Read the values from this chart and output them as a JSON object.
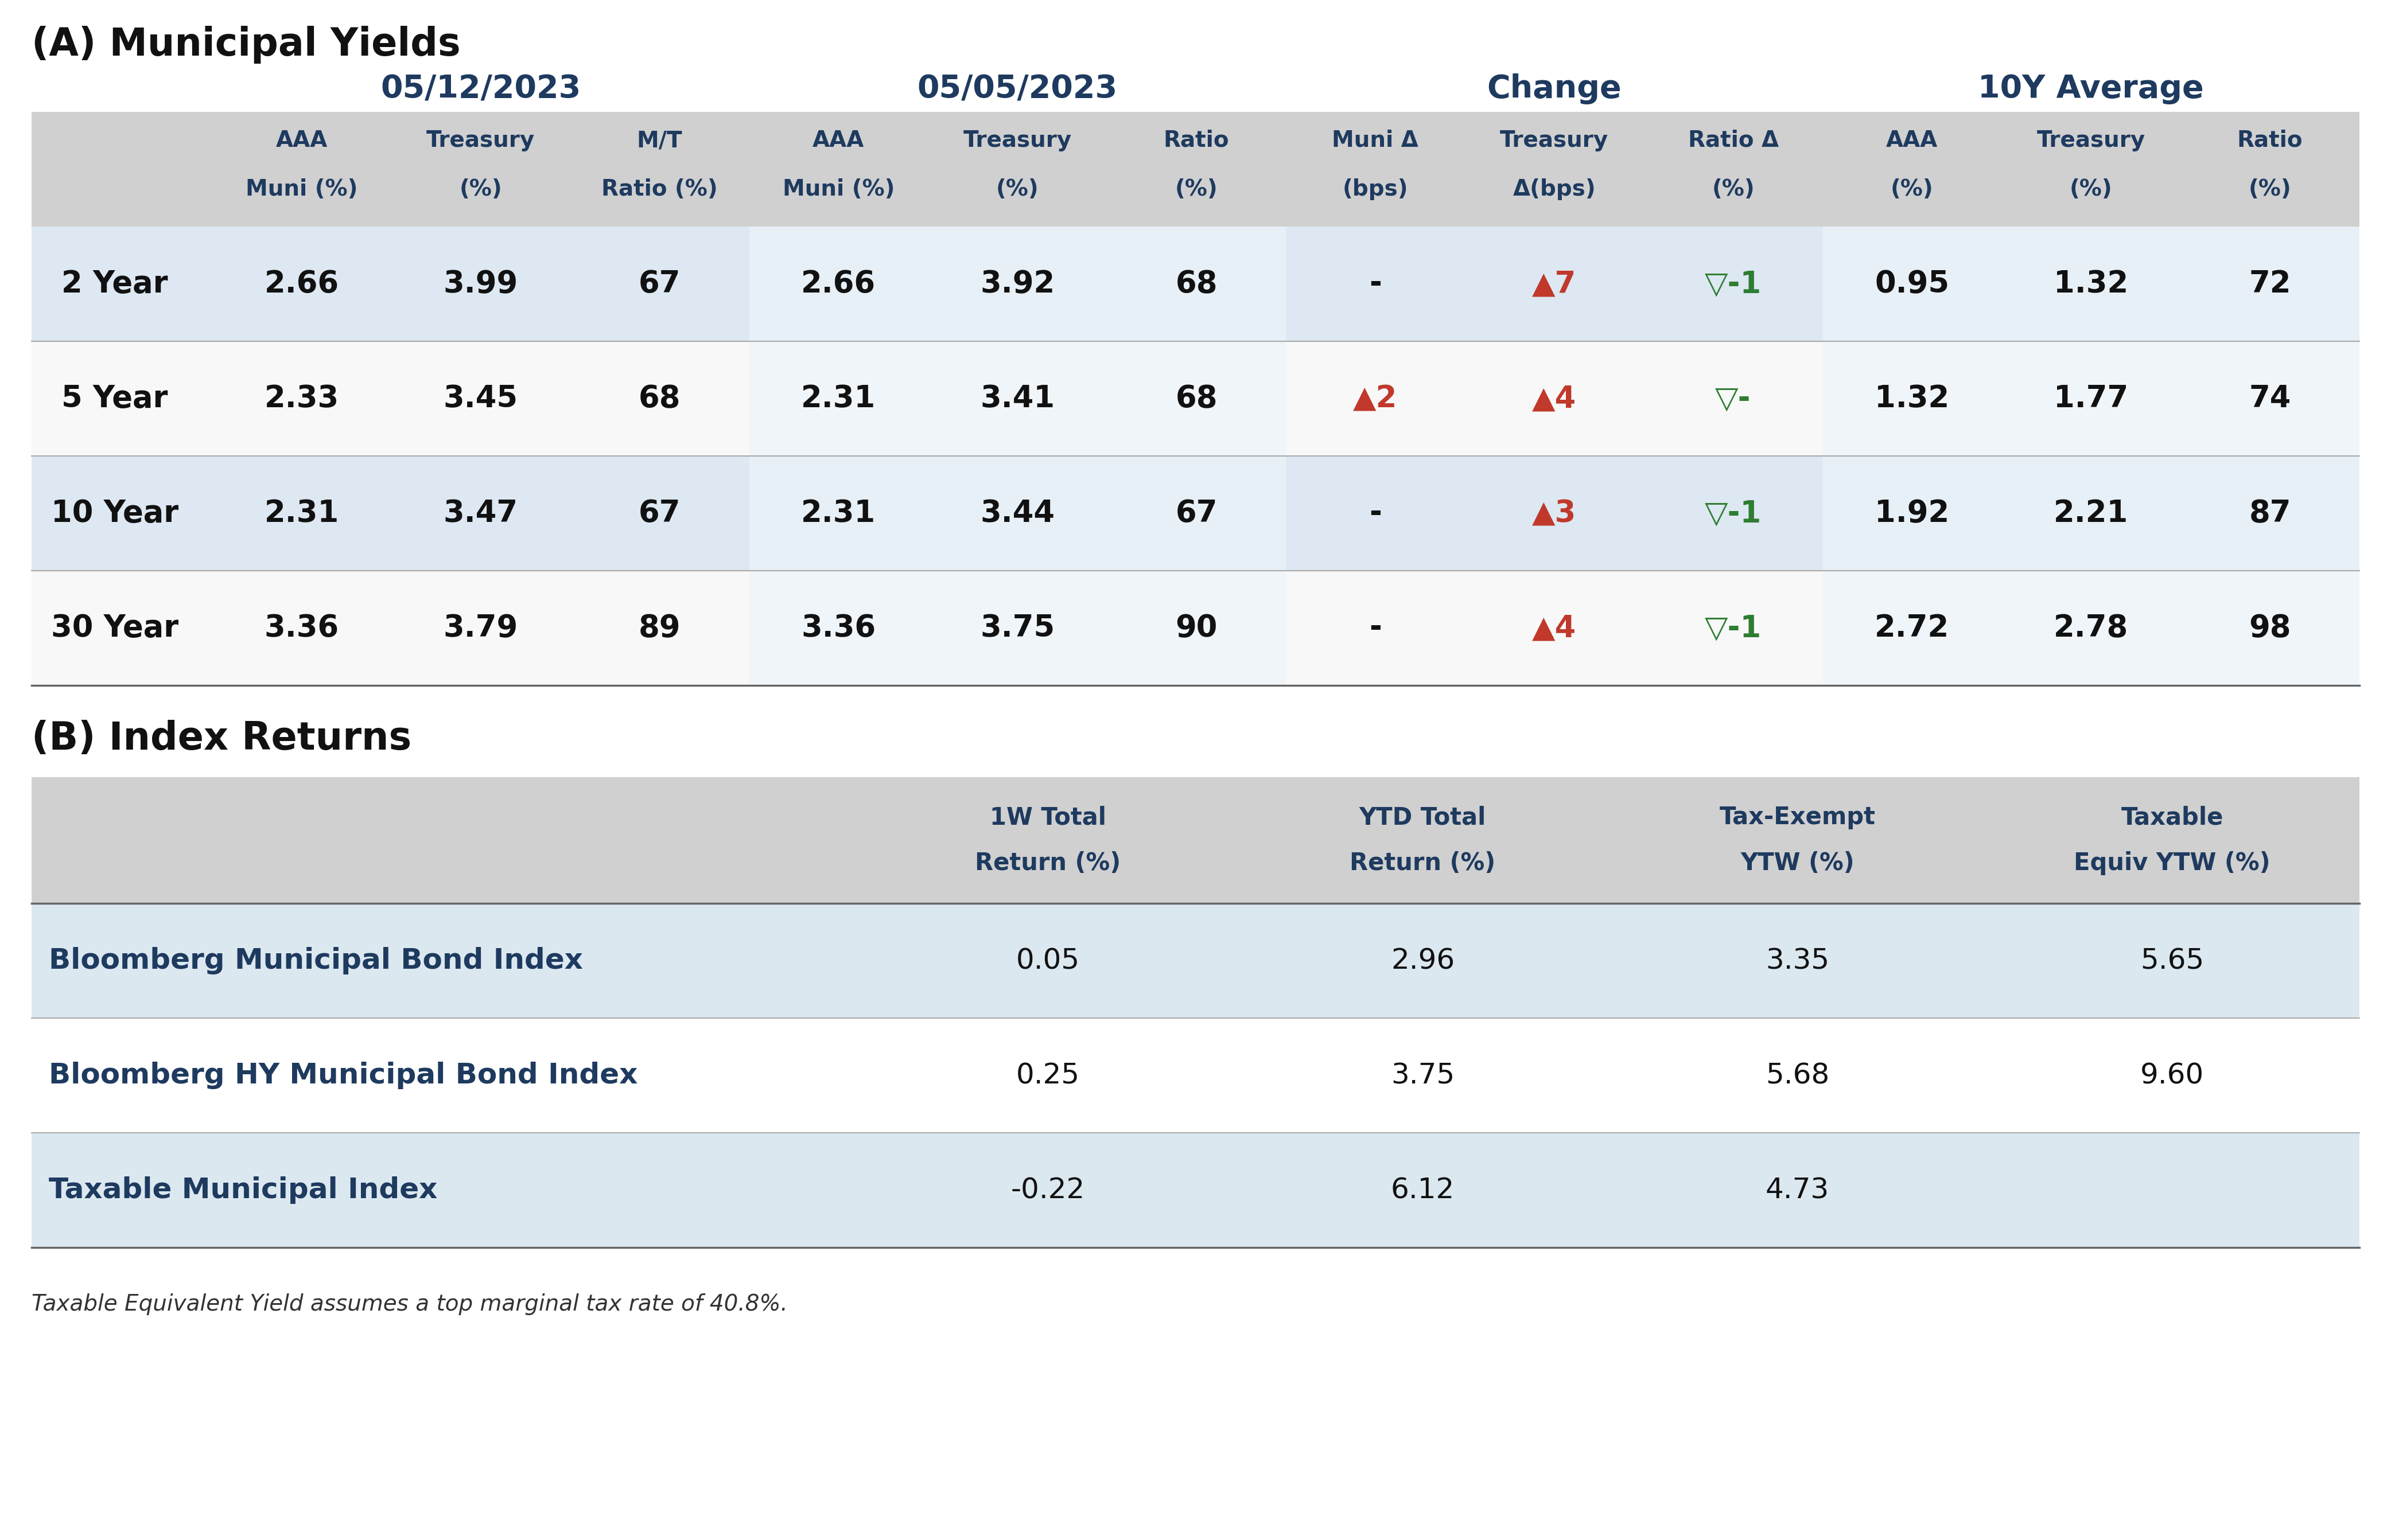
{
  "title_a": "(A) Municipal Yields",
  "title_b": "(B) Index Returns",
  "bg_color": "#ffffff",
  "header_bg": "#d0d0d0",
  "row_bg_alt": "#dce8f0",
  "row_bg_white": "#ffffff",
  "dark_blue": "#1e3a5f",
  "black": "#111111",
  "red_color": "#c0392b",
  "green_color": "#2e7d32",
  "footnote_color": "#333333",
  "line_color": "#aaaaaa",
  "line_color_strong": "#666666",
  "date1": "05/12/2023",
  "date2": "05/05/2023",
  "change_label": "Change",
  "avg_label": "10Y Average",
  "col_headers_row1": [
    "AAA",
    "Treasury",
    "M/T",
    "AAA",
    "Treasury",
    "Ratio",
    "Muni Δ",
    "Treasury",
    "Ratio Δ",
    "AAA",
    "Treasury",
    "Ratio"
  ],
  "col_headers_row2": [
    "Muni (%)",
    "(%)",
    "Ratio (%)",
    "Muni (%)",
    "(%)",
    "(%)",
    "(bps)",
    "Δ(bps)",
    "(%)",
    "(%)",
    "(%)",
    "(%)"
  ],
  "row_labels": [
    "2 Year",
    "5 Year",
    "10 Year",
    "30 Year"
  ],
  "table_data": [
    [
      "2.66",
      "3.99",
      "67",
      "2.66",
      "3.92",
      "68",
      "-",
      "▲7",
      "▽-1",
      "0.95",
      "1.32",
      "72"
    ],
    [
      "2.33",
      "3.45",
      "68",
      "2.31",
      "3.41",
      "68",
      "▲2",
      "▲4",
      "▽-",
      "1.32",
      "1.77",
      "74"
    ],
    [
      "2.31",
      "3.47",
      "67",
      "2.31",
      "3.44",
      "67",
      "-",
      "▲3",
      "▽-1",
      "1.92",
      "2.21",
      "87"
    ],
    [
      "3.36",
      "3.79",
      "89",
      "3.36",
      "3.75",
      "90",
      "-",
      "▲4",
      "▽-1",
      "2.72",
      "2.78",
      "98"
    ]
  ],
  "change_col_colors": [
    [
      null,
      "red",
      "green"
    ],
    [
      "red",
      "red",
      "green"
    ],
    [
      null,
      "red",
      "green"
    ],
    [
      null,
      "red",
      "green"
    ]
  ],
  "index_headers_line1": [
    "1W Total",
    "YTD Total",
    "Tax-Exempt",
    "Taxable"
  ],
  "index_headers_line2": [
    "Return (%)",
    "Return (%)",
    "YTW (%)",
    "Equiv YTW (%)"
  ],
  "index_rows": [
    [
      "Bloomberg Municipal Bond Index",
      "0.05",
      "2.96",
      "3.35",
      "5.65"
    ],
    [
      "Bloomberg HY Municipal Bond Index",
      "0.25",
      "3.75",
      "5.68",
      "9.60"
    ],
    [
      "Taxable Municipal Index",
      "-0.22",
      "6.12",
      "4.73",
      ""
    ]
  ],
  "footnote": "Taxable Equivalent Yield assumes a top marginal tax rate of 40.8%."
}
